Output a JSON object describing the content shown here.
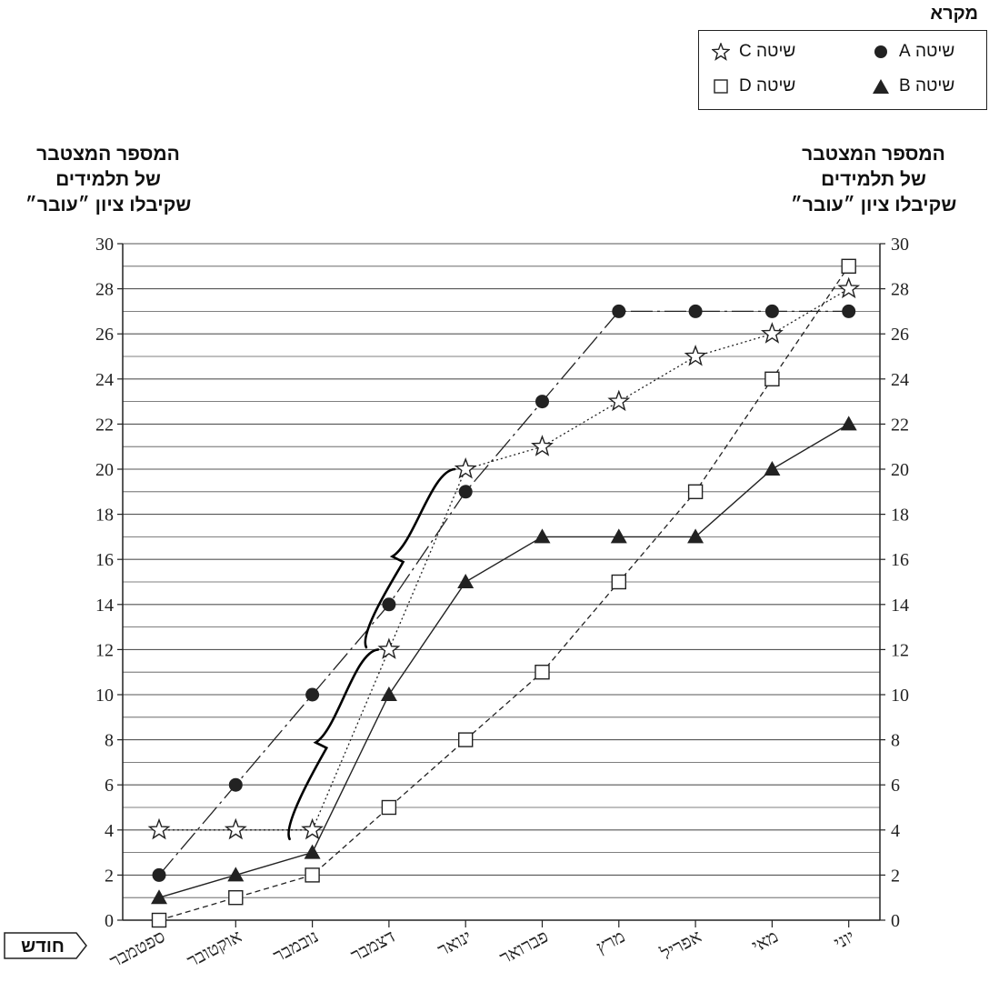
{
  "legend": {
    "title": "מקרא",
    "items": [
      {
        "label": "שיטה A",
        "marker": "filled-circle",
        "line": "dash-dot"
      },
      {
        "label": "שיטה B",
        "marker": "filled-triangle",
        "line": "solid"
      },
      {
        "label": "שיטה C",
        "marker": "hollow-star",
        "line": "dotted"
      },
      {
        "label": "שיטה D",
        "marker": "hollow-square",
        "line": "dashed"
      }
    ]
  },
  "chart_data": {
    "type": "line",
    "y_axis_label_lines": [
      "המספר המצטבר",
      "של תלמידים",
      "שקיבלו ציון ״עובר״"
    ],
    "x_axis_label": "חודש",
    "categories": [
      "ספטמבר",
      "אוקטובר",
      "נובמבר",
      "דצמבר",
      "ינואר",
      "פברואר",
      "מרץ",
      "אפריל",
      "מאי",
      "יוני"
    ],
    "ylim": [
      0,
      30
    ],
    "y_ticks": [
      0,
      2,
      4,
      6,
      8,
      10,
      12,
      14,
      16,
      18,
      20,
      22,
      24,
      26,
      28,
      30
    ],
    "grid": "horizontal",
    "series": [
      {
        "name": "שיטה A",
        "values": [
          2,
          6,
          10,
          14,
          19,
          23,
          27,
          27,
          27,
          27
        ],
        "points": [
          0,
          1,
          2,
          3,
          4,
          5,
          6,
          7,
          8,
          9
        ]
      },
      {
        "name": "שיטה B",
        "values": [
          1,
          2,
          3,
          10,
          15,
          17,
          17,
          17,
          20,
          22
        ],
        "points": [
          0,
          1,
          2,
          3,
          4,
          5,
          6,
          7,
          8,
          9
        ]
      },
      {
        "name": "שיטה C",
        "values": [
          4,
          4,
          4,
          12,
          20,
          21,
          23,
          25,
          26,
          28
        ],
        "points": [
          0,
          1,
          2,
          3,
          4,
          5,
          6,
          7,
          8,
          9
        ]
      },
      {
        "name": "שיטה D",
        "values": [
          0,
          1,
          2,
          5,
          8,
          11,
          15,
          19,
          24,
          29
        ],
        "points": [
          0,
          1,
          2,
          3,
          4,
          5,
          6,
          7,
          8,
          9
        ]
      }
    ],
    "annotations": [
      {
        "type": "brace",
        "from": {
          "category": "נובמבר",
          "value": 4
        },
        "to": {
          "category": "דצמבר",
          "value": 12
        }
      },
      {
        "type": "brace",
        "from": {
          "category": "דצמבר",
          "value": 12.5
        },
        "to": {
          "category": "ינואר",
          "value": 20
        }
      }
    ],
    "colors": {
      "axis": "#222222",
      "grid": "#555555",
      "marker": "#222222",
      "background": "#ffffff"
    }
  }
}
